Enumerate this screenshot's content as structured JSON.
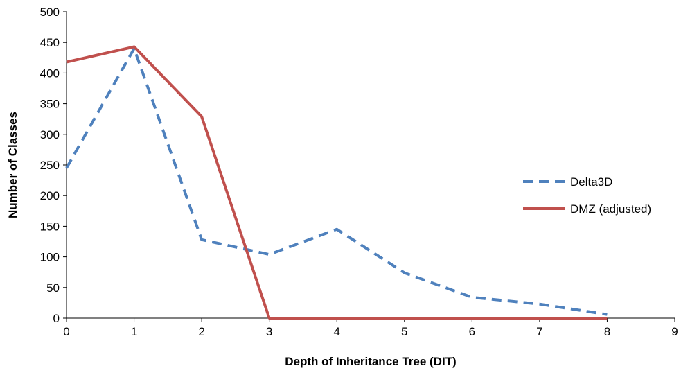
{
  "chart_data": {
    "type": "line",
    "title": "",
    "xlabel": "Depth of Inheritance Tree (DIT)",
    "ylabel": "Number of Classes",
    "xlim": [
      0,
      9
    ],
    "ylim": [
      0,
      500
    ],
    "x_ticks": [
      "0",
      "1",
      "2",
      "3",
      "4",
      "5",
      "6",
      "7",
      "8",
      "9"
    ],
    "y_ticks": [
      "0",
      "50",
      "100",
      "150",
      "200",
      "250",
      "300",
      "350",
      "400",
      "450",
      "500"
    ],
    "grid": false,
    "legend_position": "right",
    "series": [
      {
        "name": "Delta3D",
        "style": "dashed",
        "color": "#4F81BD",
        "x": [
          0,
          1,
          2,
          3,
          4,
          5,
          6,
          7,
          8
        ],
        "y": [
          245,
          440,
          128,
          104,
          145,
          74,
          34,
          23,
          6
        ]
      },
      {
        "name": "DMZ (adjusted)",
        "style": "solid",
        "color": "#C0504D",
        "x": [
          0,
          1,
          2,
          3,
          4,
          5,
          6,
          7,
          8
        ],
        "y": [
          418,
          443,
          329,
          0,
          0,
          0,
          0,
          0,
          0
        ]
      }
    ]
  }
}
